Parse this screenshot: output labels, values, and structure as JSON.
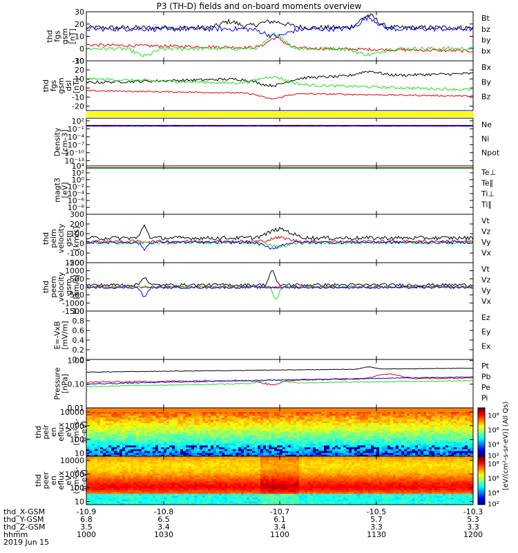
{
  "title": "P3 (TH-D) fields and on-board moments overview",
  "colors": {
    "black": "#000000",
    "red": "#dd0000",
    "green": "#22dd22",
    "blue": "#0000ee",
    "yellow": "#ffff00"
  },
  "chart_data": [
    {
      "type": "line",
      "ylabel_lines": [
        "thd",
        "fgs",
        "gsm",
        "[nT]"
      ],
      "ylim": [
        -10,
        30
      ],
      "yticks": [
        {
          "v": 30,
          "label": "30"
        },
        {
          "v": 20,
          "label": "20"
        },
        {
          "v": 10,
          "label": "10"
        },
        {
          "v": 0,
          "label": "0"
        },
        {
          "v": -10,
          "label": "-10"
        }
      ],
      "series": [
        {
          "name": "Bt",
          "color": "#000000",
          "base": 17,
          "noise": 2,
          "events": [
            [
              0.37,
              5,
              0.03
            ],
            [
              0.48,
              5,
              0.05
            ],
            [
              0.73,
              10,
              0.03
            ]
          ]
        },
        {
          "name": "bz",
          "color": "#dd0000",
          "base": 3,
          "slope": -5,
          "noise": 1.2,
          "events": [
            [
              0.49,
              8,
              0.03
            ]
          ]
        },
        {
          "name": "by",
          "color": "#22dd22",
          "base": 0,
          "noise": 1.5,
          "events": [
            [
              0.15,
              -6,
              0.03
            ],
            [
              0.49,
              12,
              0.03
            ],
            [
              0.73,
              -5,
              0.04
            ]
          ]
        },
        {
          "name": "bx",
          "color": "#0000ee",
          "base": 16,
          "noise": 2,
          "events": [
            [
              0.49,
              -6,
              0.04
            ],
            [
              0.73,
              9,
              0.03
            ]
          ]
        }
      ]
    },
    {
      "type": "line",
      "ylabel_lines": [
        "thd",
        "fgs",
        "gsm",
        "dsl",
        "[nT]"
      ],
      "ylim": [
        -25,
        30
      ],
      "yticks": [
        {
          "v": 30,
          "label": "30"
        },
        {
          "v": 20,
          "label": "20"
        },
        {
          "v": 10,
          "label": "10"
        },
        {
          "v": 0,
          "label": "0"
        },
        {
          "v": -10,
          "label": "-10"
        },
        {
          "v": -20,
          "label": "-20"
        }
      ],
      "series": [
        {
          "name": "Bx",
          "color": "#000000",
          "base": 6,
          "slope": 10,
          "noise": 1.5,
          "events": [
            [
              0.48,
              -8,
              0.05
            ],
            [
              0.73,
              5,
              0.04
            ]
          ]
        },
        {
          "name": "By",
          "color": "#22dd22",
          "base": 10,
          "slope": -12,
          "noise": 1.5,
          "events": [
            [
              0.48,
              8,
              0.05
            ]
          ]
        },
        {
          "name": "Bz",
          "color": "#dd0000",
          "base": -3,
          "slope": -6,
          "noise": 0.8,
          "events": [
            [
              0.48,
              -6,
              0.04
            ]
          ]
        }
      ]
    },
    {
      "type": "line",
      "ylabel_lines": [
        "Density",
        "[cm-3]"
      ],
      "log": true,
      "ylim": [
        1e-15,
        1000.0
      ],
      "yticks": [
        {
          "v": 100.0,
          "label": "10²"
        },
        {
          "v": 0.1,
          "label": "10⁻¹"
        },
        {
          "v": 0.0001,
          "label": "10⁻⁴"
        },
        {
          "v": 1e-07,
          "label": "10⁻⁷"
        },
        {
          "v": 1e-10,
          "label": "10⁻¹⁰"
        },
        {
          "v": 1e-13,
          "label": "10⁻¹³"
        }
      ],
      "series": [
        {
          "name": "Ne",
          "color": "#dd0000",
          "base": 2,
          "noise": 0.1
        },
        {
          "name": "Ni",
          "color": "#000000",
          "base": 1.5,
          "noise": 0.1
        },
        {
          "name": "Npot",
          "color": "#0000ee",
          "base": 1,
          "noise": 0.1
        }
      ]
    },
    {
      "type": "line",
      "ylabel_lines": [
        "magt3",
        "[eV]"
      ],
      "log": true,
      "ylim": [
        1e-10,
        10000.0
      ],
      "yticks": [
        {
          "v": 10000.0,
          "label": "10⁴"
        },
        {
          "v": 100.0,
          "label": "10²"
        },
        {
          "v": 1.0,
          "label": "10⁰"
        },
        {
          "v": 0.01,
          "label": "10⁻²"
        },
        {
          "v": 0.0001,
          "label": "10⁻⁴"
        },
        {
          "v": 1e-06,
          "label": "10⁻⁶"
        },
        {
          "v": 1e-08,
          "label": "10⁻⁸"
        }
      ],
      "series": [
        {
          "name": "Te⊥",
          "color": "#dd0000",
          "base": 3000,
          "noise": 0.1
        },
        {
          "name": "Te∥",
          "color": "#000000",
          "base": 2500,
          "noise": 0.1
        },
        {
          "name": "Ti⊥",
          "color": "#0000ee",
          "base": 2000,
          "noise": 0.1
        },
        {
          "name": "Ti∥",
          "color": "#22dd22",
          "base": 1800,
          "noise": 0.1
        }
      ]
    },
    {
      "type": "line",
      "ylabel_lines": [
        "thd",
        "peim",
        "velocity",
        "gsm",
        "[km/s]"
      ],
      "ylim": [
        -200,
        300
      ],
      "yticks": [
        {
          "v": 300,
          "label": "300"
        },
        {
          "v": 200,
          "label": "200"
        },
        {
          "v": 100,
          "label": "100"
        },
        {
          "v": 0,
          "label": "0"
        },
        {
          "v": -100,
          "label": "-100"
        },
        {
          "v": -200,
          "label": "-200"
        }
      ],
      "series": [
        {
          "name": "Vt",
          "color": "#000000",
          "base": 55,
          "noise": 20,
          "events": [
            [
              0.15,
              130,
              0.01
            ],
            [
              0.5,
              90,
              0.04
            ]
          ]
        },
        {
          "name": "Vz",
          "color": "#dd0000",
          "base": 20,
          "noise": 15,
          "events": [
            [
              0.5,
              40,
              0.03
            ]
          ]
        },
        {
          "name": "Vy",
          "color": "#22dd22",
          "base": 5,
          "noise": 15,
          "events": [
            [
              0.5,
              -40,
              0.03
            ]
          ]
        },
        {
          "name": "Vx",
          "color": "#0000ee",
          "base": 10,
          "noise": 15,
          "events": [
            [
              0.15,
              -70,
              0.01
            ],
            [
              0.48,
              -60,
              0.03
            ]
          ]
        }
      ]
    },
    {
      "type": "line",
      "ylabel_lines": [
        "thd",
        "peem",
        "velocity",
        "gsm",
        "[km/s]"
      ],
      "ylim": [
        -1500,
        1500
      ],
      "yticks": [
        {
          "v": 1500,
          "label": "1500"
        },
        {
          "v": 1000,
          "label": "1000"
        },
        {
          "v": 500,
          "label": "500"
        },
        {
          "v": 0,
          "label": "0"
        },
        {
          "v": -500,
          "label": "-500"
        },
        {
          "v": -1000,
          "label": "-1000"
        },
        {
          "v": -1500,
          "label": "-1500"
        }
      ],
      "series": [
        {
          "name": "Vt",
          "color": "#000000",
          "base": 120,
          "noise": 90,
          "events": [
            [
              0.15,
              500,
              0.01
            ],
            [
              0.48,
              900,
              0.01
            ]
          ]
        },
        {
          "name": "Vz",
          "color": "#dd0000",
          "base": 0,
          "noise": 70
        },
        {
          "name": "Vy",
          "color": "#22dd22",
          "base": -20,
          "noise": 70,
          "events": [
            [
              0.49,
              -700,
              0.01
            ]
          ]
        },
        {
          "name": "Vx",
          "color": "#0000ee",
          "base": -40,
          "noise": 70,
          "events": [
            [
              0.15,
              -600,
              0.01
            ]
          ]
        }
      ]
    },
    {
      "type": "line",
      "ylabel_lines": [
        "E=-VxB",
        "[mV/m]"
      ],
      "ylim": [
        0,
        1
      ],
      "yticks": [
        {
          "v": 1.0,
          "label": "1.0"
        },
        {
          "v": 0.8,
          "label": "0.8"
        },
        {
          "v": 0.6,
          "label": "0.6"
        },
        {
          "v": 0.4,
          "label": "0.4"
        },
        {
          "v": 0.2,
          "label": "0.2"
        },
        {
          "v": 0.0,
          "label": "0.0"
        }
      ],
      "series": [
        {
          "name": "Ez",
          "color": "#dd0000",
          "values": []
        },
        {
          "name": "Ey",
          "color": "#22dd22",
          "values": []
        },
        {
          "name": "Ex",
          "color": "#0000ee",
          "values": []
        }
      ]
    },
    {
      "type": "line",
      "ylabel_lines": [
        "Pressure",
        "[nPa]"
      ],
      "log": true,
      "ylim": [
        0.01,
        1.1
      ],
      "yticks": [
        {
          "v": 1.0,
          "label": "1.00"
        },
        {
          "v": 0.1,
          "label": "0.10"
        },
        {
          "v": 0.01,
          "label": "0.01"
        }
      ],
      "series": [
        {
          "name": "Pt",
          "color": "#000000",
          "base": 0.32,
          "slope": 0.15,
          "noise": 0.01,
          "events": [
            [
              0.73,
              0.1,
              0.02
            ]
          ]
        },
        {
          "name": "Pb",
          "color": "#dd0000",
          "base": 0.12,
          "slope": 0.06,
          "noise": 0.01,
          "events": [
            [
              0.48,
              -0.05,
              0.04
            ],
            [
              0.78,
              0.1,
              0.04
            ]
          ]
        },
        {
          "name": "Pe",
          "color": "#22dd22",
          "base": 0.08,
          "slope": 0.06,
          "noise": 0.006,
          "events": [
            [
              0.48,
              0.04,
              0.04
            ]
          ]
        },
        {
          "name": "Pi",
          "color": "#0000ee",
          "base": 0.1,
          "slope": 0.1,
          "noise": 0.006
        }
      ]
    },
    {
      "type": "heatmap",
      "ylabel_lines": [
        "thd",
        "peir",
        "en",
        "eflux",
        "eV",
        "(cm²-s-",
        "sr-eV)"
      ],
      "log": true,
      "ylim": [
        6,
        20000
      ],
      "yticks": [
        {
          "v": 10000,
          "label": "10000"
        },
        {
          "v": 1000,
          "label": "1000"
        },
        {
          "v": 100,
          "label": "100"
        },
        {
          "v": 10,
          "label": "10"
        }
      ],
      "colorbar_ticks": [
        {
          "label": "10⁸",
          "frac": 0.85
        },
        {
          "label": "10⁶",
          "frac": 0.55
        },
        {
          "label": "10⁴",
          "frac": 0.25
        },
        {
          "label": "10²",
          "frac": 0.02
        }
      ]
    },
    {
      "type": "heatmap",
      "ylabel_lines": [
        "thd",
        "peer",
        "en",
        "eflux",
        "eV",
        "(cm²-s-",
        "sr-eV)"
      ],
      "log": true,
      "ylim": [
        6,
        20000
      ],
      "yticks": [
        {
          "v": 10000,
          "label": "10000"
        },
        {
          "v": 1000,
          "label": "1000"
        },
        {
          "v": 100,
          "label": "100"
        },
        {
          "v": 10,
          "label": "10"
        }
      ],
      "colorbar_ticks": [
        {
          "label": "10⁸",
          "frac": 0.85
        },
        {
          "label": "10⁶",
          "frac": 0.55
        },
        {
          "label": "10⁴",
          "frac": 0.25
        },
        {
          "label": "10²",
          "frac": 0.02
        }
      ]
    }
  ],
  "colorbar_label": "[eV/(cm²-s-sr-eV)] (All Qs)",
  "xaxis": {
    "ticks": [
      "-10.9",
      "-10.8",
      "-10.7",
      "-10.5",
      "-10.3"
    ],
    "tick_pos": [
      0,
      0.2,
      0.5,
      0.75,
      1.0
    ],
    "rows": [
      {
        "label": "thd_X-GSM",
        "values": [
          "-10.9",
          "-10.8",
          "-10.7",
          "-10.5",
          "-10.3"
        ]
      },
      {
        "label": "thd_Y-GSM",
        "values": [
          "6.8",
          "6.5",
          "6.1",
          "5.7",
          "5.3"
        ]
      },
      {
        "label": "thd_Z-GSM",
        "values": [
          "3.5",
          "3.4",
          "3.4",
          "3.3",
          "3.3"
        ]
      },
      {
        "label": "hhmm",
        "values": [
          "1000",
          "1030",
          "1100",
          "1130",
          "1200"
        ]
      }
    ],
    "date": "2019 Jun 15"
  }
}
